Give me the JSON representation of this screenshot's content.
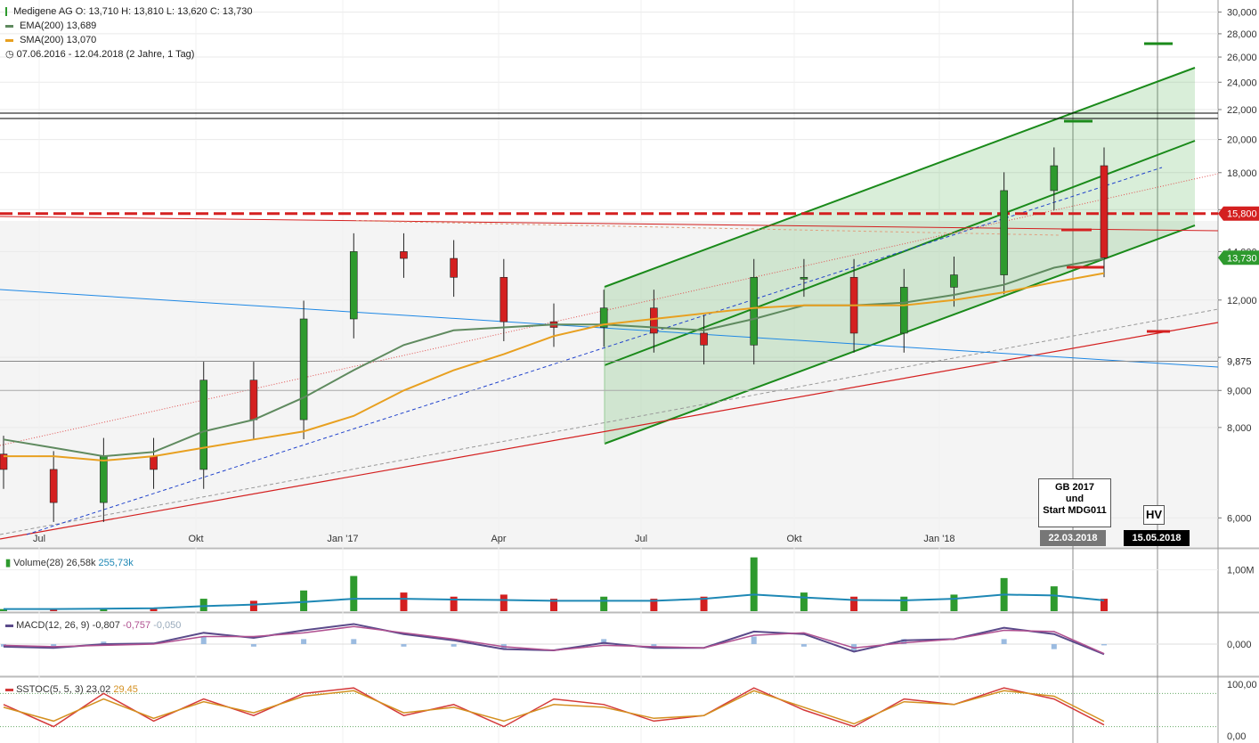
{
  "header": {
    "title": "Medigene AG",
    "ohlc": "O: 13,710  H: 13,810  L: 13,620  C: 13,730",
    "ema_label": "EMA(200)",
    "ema_value": "13,689",
    "sma_label": "SMA(200)",
    "sma_value": "13,070",
    "range": "07.06.2016 - 12.04.2018",
    "range_detail": "(2 Jahre, 1 Tag)"
  },
  "colors": {
    "up": "#2e9a2e",
    "down": "#d42020",
    "ema": "#5f8a5f",
    "sma": "#e8a020",
    "channel": "#1a8a1a",
    "support": "#d42020",
    "blue_line": "#1e88e5",
    "volume_avg": "#1e88b5",
    "macd": "#5a4a8a",
    "macd_signal": "#b05090",
    "sstoc_k": "#d43a3a",
    "sstoc_d": "#d49020"
  },
  "price_axis": {
    "ticks": [
      "30,000",
      "28,000",
      "26,000",
      "24,000",
      "22,000",
      "20,000",
      "18,000",
      "16,000",
      "14,000",
      "12,000",
      "10,000",
      "9,000",
      "8,000",
      "6,000"
    ],
    "tick_values": [
      30,
      28,
      26,
      24,
      22,
      20,
      18,
      16,
      14,
      12,
      10,
      9,
      8,
      6
    ],
    "tags": [
      {
        "label": "15,800",
        "value": 15.8,
        "color": "#d42020"
      },
      {
        "label": "13,730",
        "value": 13.73,
        "color": "#2e9a2e"
      },
      {
        "label": "9,875",
        "value": 9.875,
        "color": "#222"
      }
    ]
  },
  "time_axis": {
    "labels": [
      "Jul",
      "Okt",
      "Jan '17",
      "Apr",
      "Jul",
      "Okt",
      "Jan '18"
    ],
    "date_tags": [
      "22.03.2018",
      "15.05.2018"
    ]
  },
  "annotations": {
    "gb_box_lines": [
      "GB 2017",
      "und",
      "Start MDG011"
    ],
    "hv_box": "HV"
  },
  "volume_panel": {
    "label": "Volume(28)",
    "value1": "26,58k",
    "value2": "255,73k",
    "axis_tick": "1,00M"
  },
  "macd_panel": {
    "label": "MACD(12, 26, 9)",
    "value1": "-0,807",
    "value2": "-0,757",
    "value3": "-0,050",
    "axis_tick": "0,000"
  },
  "sstoc_panel": {
    "label": "SSTOC(5, 5, 3)",
    "value1": "23,02",
    "value2": "29,45",
    "axis_tick_top": "100,00",
    "axis_tick_bottom": "0,00"
  },
  "chart_data": {
    "type": "line",
    "scale": "log",
    "ylim": [
      5.5,
      31
    ],
    "x_dates": [
      "2016-06",
      "2016-07",
      "2016-08",
      "2016-09",
      "2016-10",
      "2016-11",
      "2016-12",
      "2017-01",
      "2017-02",
      "2017-03",
      "2017-04",
      "2017-05",
      "2017-06",
      "2017-07",
      "2017-08",
      "2017-09",
      "2017-10",
      "2017-11",
      "2017-12",
      "2018-01",
      "2018-02",
      "2018-03",
      "2018-04"
    ],
    "close": [
      7.0,
      6.3,
      7.3,
      7.0,
      9.3,
      8.2,
      11.3,
      14.0,
      13.7,
      12.9,
      11.2,
      11.0,
      11.7,
      10.8,
      10.4,
      12.9,
      12.9,
      10.8,
      12.5,
      13.0,
      17.0,
      18.4,
      13.73
    ],
    "ema200": [
      7.7,
      7.5,
      7.3,
      7.4,
      7.9,
      8.2,
      8.8,
      9.6,
      10.4,
      10.9,
      11.0,
      11.1,
      11.1,
      11.0,
      10.9,
      11.3,
      11.8,
      11.8,
      11.9,
      12.2,
      12.6,
      13.3,
      13.689
    ],
    "sma200": [
      7.3,
      7.3,
      7.2,
      7.3,
      7.5,
      7.7,
      7.9,
      8.3,
      9.0,
      9.6,
      10.1,
      10.7,
      11.1,
      11.3,
      11.5,
      11.7,
      11.8,
      11.8,
      11.8,
      12.0,
      12.3,
      12.7,
      13.07
    ],
    "volume_x": [
      "2016-06",
      "2016-07",
      "2016-08",
      "2016-09",
      "2016-10",
      "2016-11",
      "2016-12",
      "2017-01",
      "2017-02",
      "2017-03",
      "2017-04",
      "2017-05",
      "2017-06",
      "2017-07",
      "2017-08",
      "2017-09",
      "2017-10",
      "2017-11",
      "2017-12",
      "2018-01",
      "2018-02",
      "2018-03",
      "2018-04"
    ],
    "volume": [
      0.05,
      0.06,
      0.05,
      0.08,
      0.3,
      0.25,
      0.5,
      0.85,
      0.45,
      0.35,
      0.4,
      0.3,
      0.35,
      0.3,
      0.35,
      1.3,
      0.45,
      0.35,
      0.35,
      0.4,
      0.8,
      0.6,
      0.3
    ],
    "volume_avg": [
      0.05,
      0.05,
      0.06,
      0.07,
      0.12,
      0.16,
      0.22,
      0.3,
      0.3,
      0.28,
      0.27,
      0.25,
      0.25,
      0.25,
      0.3,
      0.4,
      0.33,
      0.27,
      0.26,
      0.3,
      0.4,
      0.38,
      0.26
    ],
    "macd": [
      -0.2,
      -0.3,
      0.0,
      0.05,
      0.9,
      0.5,
      1.1,
      1.6,
      0.8,
      0.3,
      -0.4,
      -0.5,
      0.1,
      -0.3,
      -0.3,
      1.0,
      0.8,
      -0.6,
      0.3,
      0.4,
      1.3,
      0.8,
      -0.807
    ],
    "macd_signal": [
      -0.1,
      -0.2,
      -0.1,
      0.0,
      0.6,
      0.6,
      0.9,
      1.4,
      0.9,
      0.4,
      -0.2,
      -0.5,
      -0.1,
      -0.2,
      -0.3,
      0.7,
      0.9,
      -0.3,
      0.1,
      0.4,
      1.1,
      1.0,
      -0.757
    ],
    "sstoc_k": [
      60,
      20,
      80,
      30,
      70,
      40,
      80,
      90,
      40,
      60,
      20,
      70,
      60,
      30,
      40,
      90,
      50,
      20,
      70,
      60,
      90,
      70,
      23.02
    ],
    "sstoc_d": [
      55,
      30,
      70,
      35,
      65,
      45,
      75,
      85,
      45,
      55,
      30,
      60,
      55,
      35,
      40,
      85,
      55,
      25,
      65,
      60,
      85,
      75,
      29.45
    ]
  }
}
